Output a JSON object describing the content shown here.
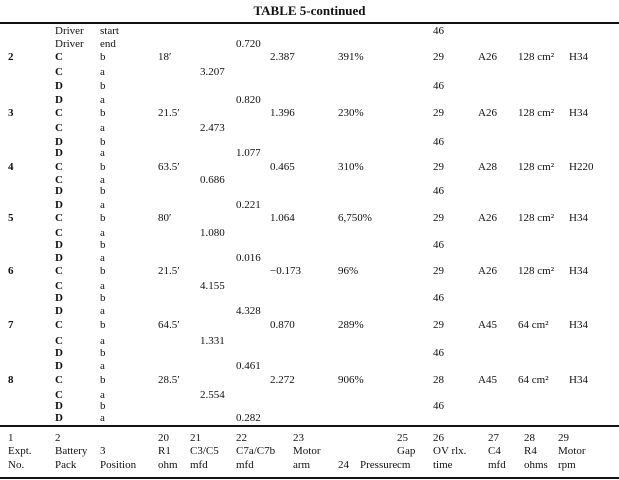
{
  "title": "TABLE 5-continued",
  "table": {
    "rows": [
      {
        "driver": "Driver",
        "position": "start",
        "ov": "46"
      },
      {
        "driver": "Driver",
        "position": "end",
        "c7": "0.720"
      },
      {
        "no": "2",
        "driver": "C",
        "position": "b",
        "r1": "18′",
        "arm": "2.387",
        "pressure": "391%",
        "ov": "29",
        "c4": "A26",
        "r4": "128 cm²",
        "rpm": "H34"
      },
      {
        "driver": "C",
        "position": "a",
        "c3": "3.207"
      },
      {
        "driver": "D",
        "position": "b",
        "ov": "46"
      },
      {
        "driver": "D",
        "position": "a",
        "c7": "0.820"
      },
      {
        "no": "3",
        "driver": "C",
        "position": "b",
        "r1": "21.5′",
        "arm": "1.396",
        "pressure": "230%",
        "ov": "29",
        "c4": "A26",
        "r4": "128 cm²",
        "rpm": "H34"
      },
      {
        "driver": "C",
        "position": "a",
        "c3": "2.473"
      },
      {
        "driver": "D",
        "position": "b",
        "ov": "46"
      },
      {
        "driver": "D",
        "position": "a",
        "c7": "1.077"
      },
      {
        "no": "4",
        "driver": "C",
        "position": "b",
        "r1": "63.5′",
        "arm": "0.465",
        "pressure": "310%",
        "ov": "29",
        "c4": "A28",
        "r4": "128 cm²",
        "rpm": "H220"
      },
      {
        "driver": "C",
        "position": "a",
        "c3": "0.686"
      },
      {
        "driver": "D",
        "position": "b",
        "ov": "46"
      },
      {
        "driver": "D",
        "position": "a",
        "c7": "0.221"
      },
      {
        "no": "5",
        "driver": "C",
        "position": "b",
        "r1": "80′",
        "arm": "1.064",
        "pressure": "6,750%",
        "ov": "29",
        "c4": "A26",
        "r4": "128 cm²",
        "rpm": "H34"
      },
      {
        "driver": "C",
        "position": "a",
        "c3": "1.080"
      },
      {
        "driver": "D",
        "position": "b",
        "ov": "46"
      },
      {
        "driver": "D",
        "position": "a",
        "c7": "0.016"
      },
      {
        "no": "6",
        "driver": "C",
        "position": "b",
        "r1": "21.5′",
        "arm": "−0.173",
        "pressure": "96%",
        "ov": "29",
        "c4": "A26",
        "r4": "128 cm²",
        "rpm": "H34"
      },
      {
        "driver": "C",
        "position": "a",
        "c3": "4.155"
      },
      {
        "driver": "D",
        "position": "b",
        "ov": "46"
      },
      {
        "driver": "D",
        "position": "a",
        "c7": "4.328"
      },
      {
        "no": "7",
        "driver": "C",
        "position": "b",
        "r1": "64.5′",
        "arm": "0.870",
        "pressure": "289%",
        "ov": "29",
        "c4": "A45",
        "r4": "64 cm²",
        "rpm": "H34"
      },
      {
        "driver": "C",
        "position": "a",
        "c3": "1.331"
      },
      {
        "driver": "D",
        "position": "b",
        "ov": "46"
      },
      {
        "driver": "D",
        "position": "a",
        "c7": "0.461"
      },
      {
        "no": "8",
        "driver": "C",
        "position": "b",
        "r1": "28.5′",
        "arm": "2.272",
        "pressure": "906%",
        "ov": "28",
        "c4": "A45",
        "r4": "64 cm²",
        "rpm": "H34"
      },
      {
        "driver": "C",
        "position": "a",
        "c3": "2.554"
      },
      {
        "driver": "D",
        "position": "b",
        "ov": "46"
      },
      {
        "driver": "D",
        "position": "a",
        "c7": "0.282"
      }
    ],
    "header": [
      [
        "1",
        "Expt.",
        "No."
      ],
      [
        "2",
        "Battery",
        "Pack"
      ],
      [
        "3",
        "Position"
      ],
      [
        "20",
        "R1",
        "ohm"
      ],
      [
        "21",
        "C3/C5",
        "mfd"
      ],
      [
        "22",
        "C7a/C7b",
        "mfd"
      ],
      [
        "23",
        "Motor",
        "arm"
      ],
      [
        "24",
        "Pressure"
      ],
      [
        "25",
        "Gap",
        "cm"
      ],
      [
        "26",
        "OV rlx.",
        "time"
      ],
      [
        "27",
        "C4",
        "mfd"
      ],
      [
        "28",
        "R4",
        "ohms"
      ],
      [
        "29",
        "Motor",
        "rpm"
      ]
    ]
  }
}
